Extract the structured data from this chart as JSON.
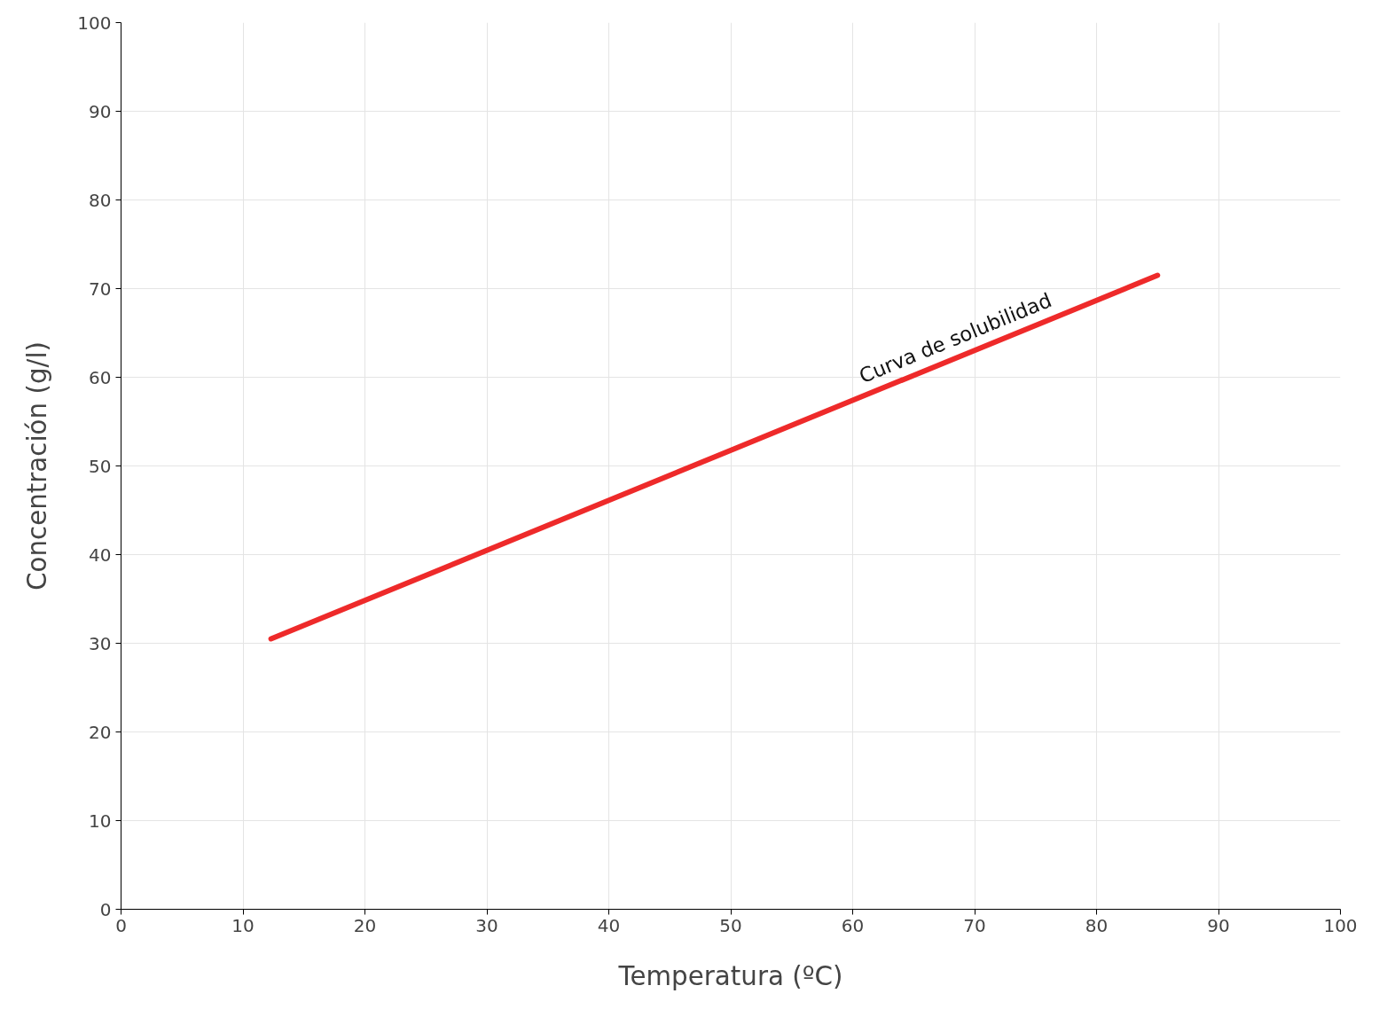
{
  "chart_data": {
    "type": "line",
    "xlabel": "Temperatura (ºC)",
    "ylabel": "Concentración (g/l)",
    "x": [
      12.3,
      85
    ],
    "series": [
      {
        "color": "#ee2a2a",
        "values": [
          30.5,
          71.5
        ]
      }
    ],
    "xlim": [
      0,
      100
    ],
    "ylim": [
      0,
      100
    ],
    "xticks": [
      0,
      10,
      20,
      30,
      40,
      50,
      60,
      70,
      80,
      90,
      100
    ],
    "yticks": [
      0,
      10,
      20,
      30,
      40,
      50,
      60,
      70,
      80,
      90,
      100
    ],
    "grid": true,
    "annotations": [
      {
        "text": "Curva de solubilidad",
        "x": 69,
        "y": 62.5
      }
    ]
  }
}
